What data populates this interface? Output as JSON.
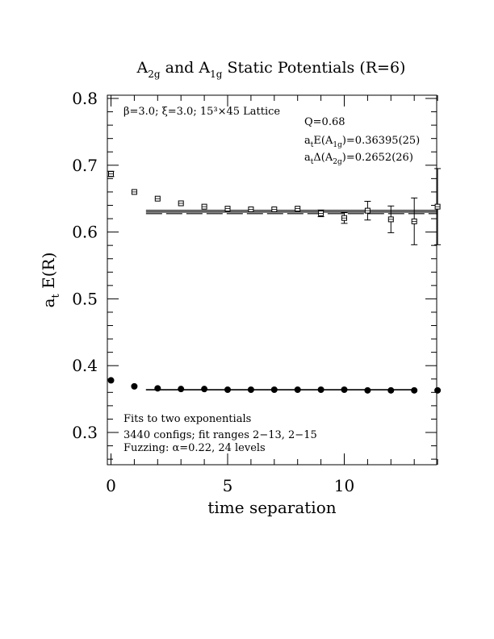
{
  "chart_data": {
    "type": "scatter",
    "title": {
      "base1": "A",
      "sub1": "2g",
      "mid": " and A",
      "sub2": "1g",
      "rest": " Static Potentials (R=6)"
    },
    "xlabel": "time separation",
    "ylabel": {
      "a": "a",
      "sub": "t",
      "rest": " E(R)"
    },
    "xlim": [
      -0.3,
      14
    ],
    "ylim": [
      0.25,
      0.805
    ],
    "xticks": [
      0,
      5,
      10
    ],
    "xtick_labels": [
      "0",
      "5",
      "10"
    ],
    "yticks": [
      0.3,
      0.4,
      0.5,
      0.6,
      0.7,
      0.8
    ],
    "ytick_labels": [
      "0.3",
      "0.4",
      "0.5",
      "0.6",
      "0.7",
      "0.8"
    ],
    "grid": false,
    "series": [
      {
        "marker": "open-square",
        "points": [
          {
            "x": 0,
            "y": 0.687,
            "err": 0.004
          },
          {
            "x": 1,
            "y": 0.66,
            "err": 0.002
          },
          {
            "x": 2,
            "y": 0.65,
            "err": 0.002
          },
          {
            "x": 3,
            "y": 0.643,
            "err": 0.002
          },
          {
            "x": 4,
            "y": 0.638,
            "err": 0.002
          },
          {
            "x": 5,
            "y": 0.635,
            "err": 0.002
          },
          {
            "x": 6,
            "y": 0.634,
            "err": 0.002
          },
          {
            "x": 7,
            "y": 0.634,
            "err": 0.002
          },
          {
            "x": 8,
            "y": 0.635,
            "err": 0.003
          },
          {
            "x": 9,
            "y": 0.628,
            "err": 0.005
          },
          {
            "x": 10,
            "y": 0.621,
            "err": 0.008
          },
          {
            "x": 11,
            "y": 0.632,
            "err": 0.014
          },
          {
            "x": 12,
            "y": 0.619,
            "err": 0.02
          },
          {
            "x": 13,
            "y": 0.616,
            "err": 0.035
          },
          {
            "x": 14,
            "y": 0.638,
            "err": 0.057
          }
        ]
      },
      {
        "marker": "filled-circle",
        "points": [
          {
            "x": 0,
            "y": 0.378,
            "err": 0.001
          },
          {
            "x": 1,
            "y": 0.369,
            "err": 0.001
          },
          {
            "x": 2,
            "y": 0.366,
            "err": 0.001
          },
          {
            "x": 3,
            "y": 0.365,
            "err": 0.001
          },
          {
            "x": 4,
            "y": 0.365,
            "err": 0.001
          },
          {
            "x": 5,
            "y": 0.364,
            "err": 0.001
          },
          {
            "x": 6,
            "y": 0.364,
            "err": 0.001
          },
          {
            "x": 7,
            "y": 0.364,
            "err": 0.001
          },
          {
            "x": 8,
            "y": 0.364,
            "err": 0.001
          },
          {
            "x": 9,
            "y": 0.364,
            "err": 0.001
          },
          {
            "x": 10,
            "y": 0.364,
            "err": 0.001
          },
          {
            "x": 11,
            "y": 0.363,
            "err": 0.001
          },
          {
            "x": 12,
            "y": 0.363,
            "err": 0.001
          },
          {
            "x": 13,
            "y": 0.363,
            "err": 0.001
          },
          {
            "x": 14,
            "y": 0.363,
            "err": 0.001
          }
        ]
      }
    ],
    "fit_bands": [
      {
        "x_range": [
          1.5,
          14
        ],
        "lines": [
          0.6325,
          0.63,
          0.6275
        ]
      },
      {
        "x_range": [
          1.5,
          13
        ],
        "lines": [
          0.3642,
          0.3637
        ]
      }
    ],
    "annotations": {
      "top_left": "β=3.0; ξ=3.0; 15³×45 Lattice",
      "q": "Q=0.68",
      "energy": {
        "pre": "a",
        "sub_t": "t",
        "mid": "E(A",
        "sub": "1g",
        "post": ")=0.36395(25)"
      },
      "gap": {
        "pre": "a",
        "sub_t": "t",
        "mid": "Δ(A",
        "sub": "2g",
        "post": ")=0.2652(26)"
      },
      "bottom": [
        "Fits to two exponentials",
        "3440 configs; fit ranges 2−13, 2−15",
        "Fuzzing: α=0.22, 24 levels"
      ]
    }
  }
}
